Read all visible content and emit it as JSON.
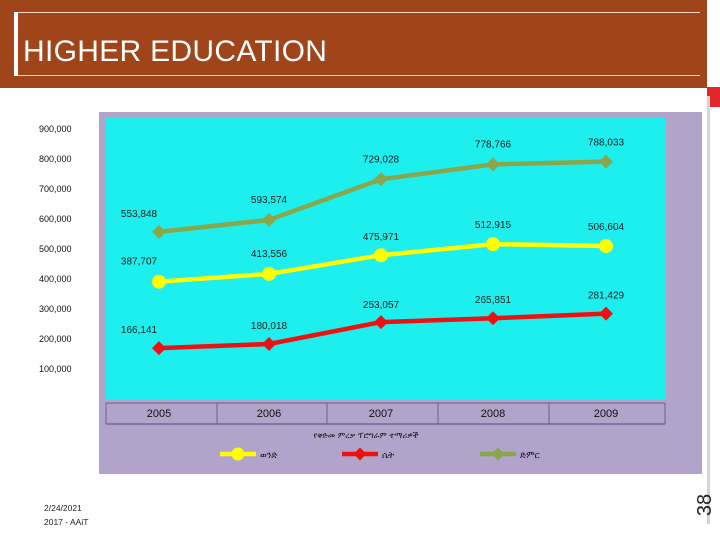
{
  "slide": {
    "title": "HIGHER EDUCATION",
    "date": "2/24/2021",
    "footer_text": "2017 - AAiT",
    "page_number": "38"
  },
  "colors": {
    "header": "#a0441a",
    "accent": "#e4262c",
    "chart_frame": "#b1a3c9",
    "plot_bg": "#1deeee"
  },
  "chart_data": {
    "type": "line",
    "title": "",
    "xlabel": "የቅድመ ምረቃ ፕሮግራም ተማሪዎች",
    "ylabel": "",
    "categories": [
      "2005",
      "2006",
      "2007",
      "2008",
      "2009"
    ],
    "ylim": [
      0,
      900000
    ],
    "yticks": [
      "900,000",
      "800,000",
      "700,000",
      "600,000",
      "500,000",
      "400,000",
      "300,000",
      "200,000",
      "100,000"
    ],
    "ytick_values": [
      900000,
      800000,
      700000,
      600000,
      500000,
      400000,
      300000,
      200000,
      100000
    ],
    "legend_position": "bottom",
    "grid": false,
    "series": [
      {
        "name": "ወንድ",
        "color": "#ffff00",
        "values": [
          387707,
          413556,
          475971,
          512915,
          506604
        ],
        "labels": [
          "387,707",
          "413,556",
          "475,971",
          "512,915",
          "506,604"
        ]
      },
      {
        "name": "ሴት",
        "color": "#ee1111",
        "values": [
          166141,
          180018,
          253057,
          265851,
          281429
        ],
        "labels": [
          "166,141",
          "180,018",
          "253,057",
          "265,851",
          "281,429"
        ]
      },
      {
        "name": "ድምር",
        "color": "#8aa64a",
        "values": [
          553848,
          593574,
          729028,
          778766,
          788033
        ],
        "labels": [
          "553,848",
          "593,574",
          "729,028",
          "778,766",
          "788,033"
        ]
      }
    ]
  }
}
